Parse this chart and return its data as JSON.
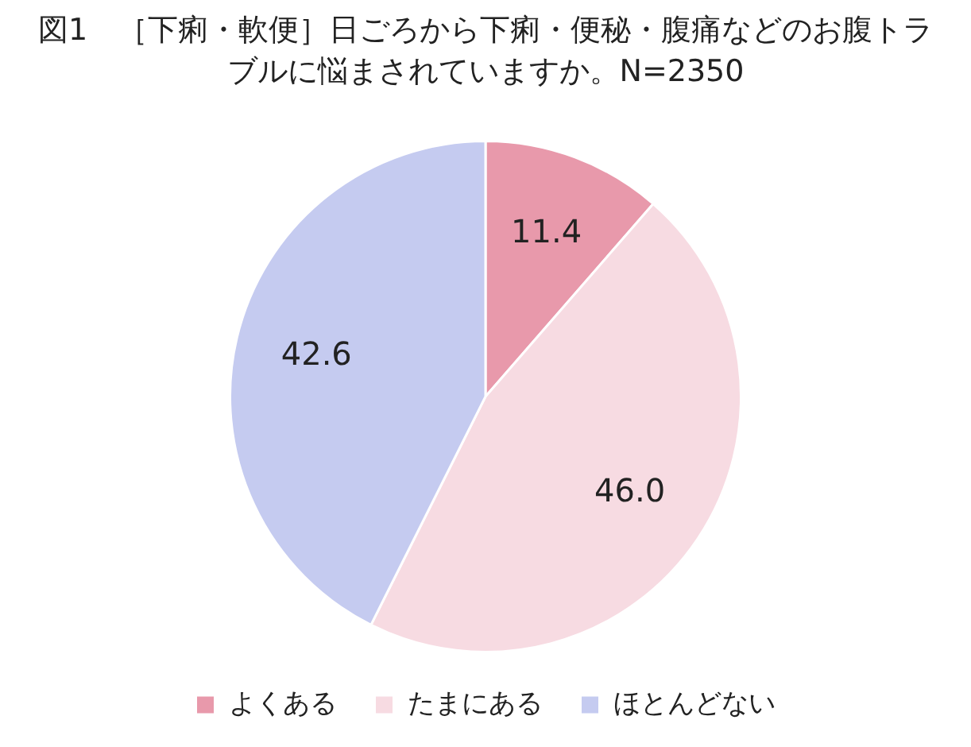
{
  "chart_data": {
    "type": "pie",
    "title": "図1　［下痢・軟便］日ごろから下痢・便秘・腹痛などのお腹トラブルに悩まされていますか。N=2350",
    "categories": [
      "よくある",
      "たまにある",
      "ほとんどない"
    ],
    "values": [
      11.4,
      46.0,
      42.6
    ],
    "value_labels": [
      "11.4",
      "46.0",
      "42.6"
    ],
    "colors": [
      "#e899ab",
      "#f7dbe2",
      "#c5cbf0"
    ],
    "legend": "bottom"
  }
}
